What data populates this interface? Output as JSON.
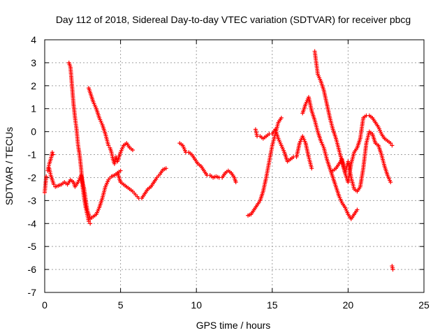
{
  "chart_data": {
    "type": "scatter",
    "title": "Day 112 of 2018, Sidereal Day-to-day VTEC variation (SDTVAR) for receiver pbcg",
    "xlabel": "GPS time / hours",
    "ylabel": "SDTVAR / TECUs",
    "xlim": [
      0,
      25
    ],
    "ylim": [
      -7,
      4
    ],
    "xticks": [
      "0",
      "5",
      "10",
      "15",
      "20",
      "25"
    ],
    "yticks": [
      "4",
      "3",
      "2",
      "1",
      "0",
      "-1",
      "-2",
      "-3",
      "-4",
      "-5",
      "-6",
      "-7"
    ],
    "grid": true,
    "marker": "+",
    "colors": {
      "series": "#ff0000",
      "grid": "#a0a0a0",
      "axis": "#000000"
    },
    "series": [
      {
        "x": [
          0.0,
          0.1
        ],
        "y": [
          -2.65,
          -1.95
        ]
      },
      {
        "x": [
          0.2,
          0.3,
          0.4,
          0.5,
          0.55
        ],
        "y": [
          -1.7,
          -1.4,
          -1.2,
          -0.9,
          -1.0
        ]
      },
      {
        "x": [
          0.3,
          0.4,
          0.5,
          0.6,
          0.7,
          0.9,
          1.1,
          1.3,
          1.5,
          1.7,
          1.9,
          2.0,
          2.2,
          2.4,
          2.6,
          2.8,
          3.0,
          3.2,
          3.4,
          3.6,
          3.8,
          4.0,
          4.2,
          4.4,
          4.6,
          4.8,
          5.0
        ],
        "y": [
          -1.6,
          -1.9,
          -2.1,
          -2.3,
          -2.4,
          -2.35,
          -2.3,
          -2.2,
          -2.3,
          -2.1,
          -2.2,
          -2.4,
          -2.2,
          -1.9,
          -2.5,
          -3.4,
          -3.8,
          -3.7,
          -3.6,
          -3.3,
          -2.9,
          -2.4,
          -2.1,
          -1.95,
          -1.9,
          -1.8,
          -1.7
        ]
      },
      {
        "x": [
          1.6,
          1.7,
          1.8,
          1.9,
          2.0,
          2.1,
          2.2,
          2.3,
          2.4,
          2.5,
          2.6,
          2.7,
          2.8,
          2.9,
          3.0
        ],
        "y": [
          3.0,
          2.8,
          2.0,
          1.2,
          0.6,
          0.1,
          -0.6,
          -1.0,
          -1.6,
          -2.4,
          -2.9,
          -3.3,
          -3.6,
          -3.9,
          -4.0
        ]
      },
      {
        "x": [
          2.9,
          3.0,
          3.2,
          3.4,
          3.6,
          3.8,
          4.0,
          4.2,
          4.3,
          4.4,
          4.5,
          4.6,
          4.7,
          4.8,
          5.0,
          5.2,
          5.4,
          5.6,
          5.8
        ],
        "y": [
          1.9,
          1.7,
          1.3,
          1.0,
          0.6,
          0.3,
          -0.1,
          -0.6,
          -0.7,
          -0.9,
          -1.2,
          -1.4,
          -1.1,
          -1.3,
          -0.9,
          -0.6,
          -0.5,
          -0.7,
          -0.8
        ]
      },
      {
        "x": [
          4.8,
          5.0,
          5.2,
          5.4,
          5.6,
          5.8,
          6.0,
          6.2,
          6.4,
          6.6,
          6.8,
          7.0,
          7.2,
          7.4,
          7.6,
          7.8,
          8.0
        ],
        "y": [
          -1.8,
          -2.2,
          -2.3,
          -2.4,
          -2.5,
          -2.6,
          -2.75,
          -2.9,
          -2.9,
          -2.7,
          -2.5,
          -2.4,
          -2.2,
          -2.0,
          -1.85,
          -1.65,
          -1.6
        ]
      },
      {
        "x": [
          8.9,
          9.1,
          9.3,
          9.5,
          9.7,
          9.9,
          10.1,
          10.3,
          10.5,
          10.7,
          10.9,
          11.1,
          11.3,
          11.5,
          11.7,
          11.9,
          12.1,
          12.3,
          12.5,
          12.6
        ],
        "y": [
          -0.5,
          -0.6,
          -0.9,
          -0.9,
          -1.0,
          -1.2,
          -1.4,
          -1.5,
          -1.7,
          -1.9,
          -1.9,
          -2.0,
          -1.95,
          -2.0,
          -2.0,
          -1.8,
          -1.7,
          -1.8,
          -2.0,
          -2.2
        ]
      },
      {
        "x": [
          13.4,
          13.6,
          13.8,
          14.0,
          14.2,
          14.4,
          14.6,
          14.8,
          15.0,
          15.2,
          15.4,
          15.6
        ],
        "y": [
          -3.65,
          -3.6,
          -3.4,
          -3.2,
          -3.0,
          -2.6,
          -2.0,
          -1.3,
          -0.6,
          -0.1,
          0.4,
          0.6
        ]
      },
      {
        "x": [
          13.9,
          14.0,
          14.2,
          14.4,
          14.6,
          14.8,
          15.0,
          15.2,
          15.4,
          15.6,
          15.8,
          16.0,
          16.2,
          16.4,
          16.6,
          16.8,
          17.0,
          17.2,
          17.4,
          17.6
        ],
        "y": [
          0.1,
          -0.2,
          -0.2,
          -0.3,
          -0.2,
          -0.1,
          -0.1,
          0.1,
          -0.3,
          -0.6,
          -0.9,
          -1.3,
          -1.2,
          -1.1,
          -1.1,
          -0.5,
          -0.2,
          -0.5,
          -1.1,
          -1.6
        ]
      },
      {
        "x": [
          17.0,
          17.2,
          17.4,
          17.6,
          17.8,
          18.0,
          18.2,
          18.4,
          18.6,
          18.8,
          19.0,
          19.2,
          19.4,
          19.6,
          19.8,
          20.0,
          20.2,
          20.4,
          20.6
        ],
        "y": [
          0.8,
          1.2,
          1.5,
          0.9,
          0.5,
          0.0,
          -0.4,
          -0.7,
          -1.2,
          -1.6,
          -2.0,
          -2.4,
          -2.8,
          -3.1,
          -3.3,
          -3.6,
          -3.8,
          -3.6,
          -3.4
        ]
      },
      {
        "x": [
          17.8,
          17.9,
          18.0,
          18.2,
          18.4,
          18.6,
          18.8,
          19.0,
          19.2,
          19.4,
          19.6,
          19.8,
          20.0,
          20.2,
          20.4,
          20.6,
          20.8,
          21.0,
          21.2,
          21.4,
          21.6,
          21.8,
          22.0,
          22.2,
          22.4,
          22.6,
          22.8,
          22.9
        ],
        "y": [
          3.5,
          3.0,
          2.5,
          2.2,
          1.8,
          1.2,
          0.6,
          0.1,
          -0.3,
          -0.8,
          -1.3,
          -1.8,
          -2.2,
          -1.4,
          -0.9,
          -0.7,
          -0.3,
          0.6,
          0.7,
          0.7,
          0.6,
          0.4,
          0.2,
          -0.1,
          -0.3,
          -0.4,
          -0.5,
          -0.6
        ]
      },
      {
        "x": [
          19.0,
          19.2,
          19.4,
          19.6,
          19.8,
          20.0,
          20.2,
          20.4,
          20.6,
          20.8,
          21.0,
          21.2,
          21.4,
          21.6,
          21.8,
          22.0,
          22.2,
          22.4,
          22.6,
          22.8
        ],
        "y": [
          -1.7,
          -1.6,
          -1.4,
          -1.2,
          -1.8,
          -1.3,
          -2.0,
          -2.5,
          -2.6,
          -2.4,
          -1.6,
          -0.5,
          0.0,
          -0.1,
          -0.5,
          -0.6,
          -1.0,
          -1.5,
          -1.9,
          -2.2
        ]
      },
      {
        "x": [
          22.9,
          22.95
        ],
        "y": [
          -5.85,
          -6.0
        ]
      }
    ]
  }
}
